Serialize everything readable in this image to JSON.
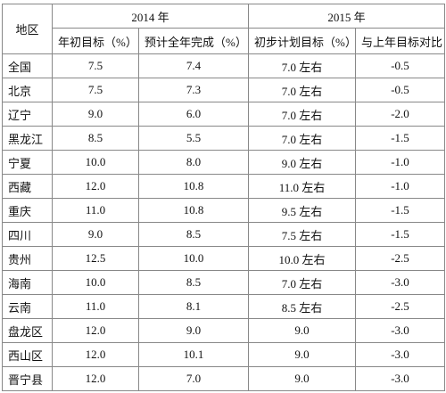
{
  "table": {
    "header": {
      "region": "地区",
      "groups": [
        "2014 年",
        "2015 年"
      ],
      "columns": [
        "年初目标（%）",
        "预计全年完成（%）",
        "初步计划目标（%）",
        "与上年目标对比"
      ]
    },
    "rows": [
      [
        "全国",
        "7.5",
        "7.4",
        "7.0 左右",
        "-0.5"
      ],
      [
        "北京",
        "7.5",
        "7.3",
        "7.0 左右",
        "-0.5"
      ],
      [
        "辽宁",
        "9.0",
        "6.0",
        "7.0 左右",
        "-2.0"
      ],
      [
        "黑龙江",
        "8.5",
        "5.5",
        "7.0 左右",
        "-1.5"
      ],
      [
        "宁夏",
        "10.0",
        "8.0",
        "9.0 左右",
        "-1.0"
      ],
      [
        "西藏",
        "12.0",
        "10.8",
        "11.0 左右",
        "-1.0"
      ],
      [
        "重庆",
        "11.0",
        "10.8",
        "9.5 左右",
        "-1.5"
      ],
      [
        "四川",
        "9.0",
        "8.5",
        "7.5 左右",
        "-1.5"
      ],
      [
        "贵州",
        "12.5",
        "10.0",
        "10.0 左右",
        "-2.5"
      ],
      [
        "海南",
        "10.0",
        "8.5",
        "7.0 左右",
        "-3.0"
      ],
      [
        "云南",
        "11.0",
        "8.1",
        "8.5 左右",
        "-2.5"
      ],
      [
        "盘龙区",
        "12.0",
        "9.0",
        "9.0",
        "-3.0"
      ],
      [
        "西山区",
        "12.0",
        "10.1",
        "9.0",
        "-3.0"
      ],
      [
        "晋宁县",
        "12.0",
        "7.0",
        "9.0",
        "-3.0"
      ]
    ]
  }
}
